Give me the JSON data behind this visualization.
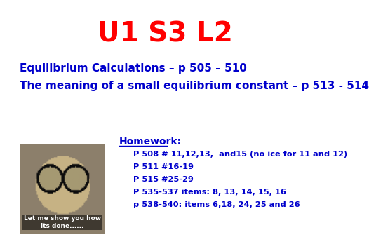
{
  "title": "U1 S3 L2",
  "title_color": "#FF0000",
  "title_fontsize": 28,
  "line1": "Equilibrium Calculations – p 505 – 510",
  "line2": "The meaning of a small equilibrium constant – p 513 - 514",
  "body_color": "#0000CC",
  "body_fontsize": 11,
  "homework_label": "Homework:",
  "hw_color": "#0000CC",
  "hw_fontsize": 10,
  "hw_items": [
    "P 508 # 11,12,13,  and15 (no ice for 11 and 12)",
    "P 511 #16-19",
    "P 515 #25-29",
    "P 535-537 items: 8, 13, 14, 15, 16",
    "p 538-540: items 6,18, 24, 25 and 26"
  ],
  "caption": "Let me show you how\nits done......",
  "bg_color": "#FFFFFF"
}
